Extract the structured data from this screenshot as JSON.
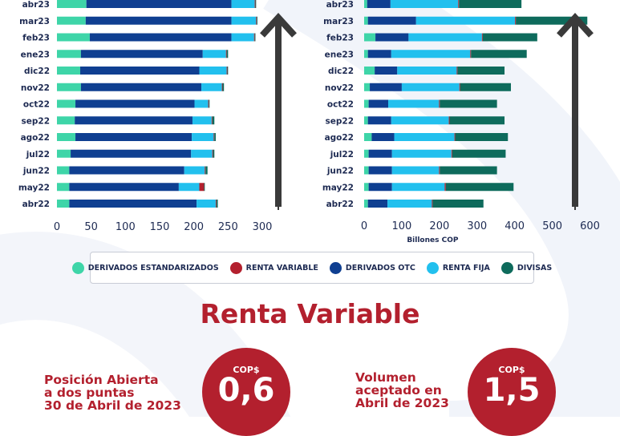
{
  "chart_data": [
    {
      "type": "bar",
      "stacked": true,
      "orientation": "horizontal",
      "categories": [
        "abr23",
        "mar23",
        "feb23",
        "ene23",
        "dic22",
        "nov22",
        "oct22",
        "sep22",
        "ago22",
        "jul22",
        "jun22",
        "may22",
        "abr22"
      ],
      "series": [
        {
          "name": "DERIVADOS ESTANDARIZADOS",
          "values": [
            43,
            42,
            48,
            35,
            34,
            35,
            27,
            26,
            27,
            20,
            18,
            18,
            18
          ]
        },
        {
          "name": "DERIVADOS OTC",
          "values": [
            212,
            213,
            207,
            178,
            174,
            176,
            174,
            172,
            170,
            176,
            168,
            160,
            186
          ]
        },
        {
          "name": "RENTA FIJA",
          "values": [
            34,
            36,
            33,
            34,
            40,
            30,
            20,
            28,
            32,
            31,
            30,
            30,
            28
          ]
        },
        {
          "name": "RENTA VARIABLE",
          "values": [
            1,
            1,
            1,
            1,
            1,
            1,
            1,
            1,
            1,
            1,
            1,
            7,
            1
          ]
        },
        {
          "name": "DIVISAS",
          "values": [
            1,
            1,
            1,
            2,
            1,
            2,
            1,
            3,
            2,
            2,
            3,
            1,
            2
          ]
        }
      ],
      "xlim": [
        0,
        300
      ],
      "xticks": [
        0,
        50,
        100,
        150,
        200,
        250,
        300
      ],
      "xlabel": ""
    },
    {
      "type": "bar",
      "stacked": true,
      "orientation": "horizontal",
      "categories": [
        "abr23",
        "mar23",
        "feb23",
        "ene23",
        "dic22",
        "nov22",
        "oct22",
        "sep22",
        "ago22",
        "jul22",
        "jun22",
        "may22",
        "abr22"
      ],
      "series": [
        {
          "name": "DERIVADOS ESTANDARIZADOS",
          "values": [
            8,
            10,
            30,
            10,
            28,
            15,
            12,
            10,
            20,
            12,
            12,
            12,
            10
          ]
        },
        {
          "name": "DERIVADOS OTC",
          "values": [
            62,
            128,
            88,
            62,
            60,
            85,
            52,
            62,
            60,
            62,
            62,
            62,
            52
          ]
        },
        {
          "name": "RENTA FIJA",
          "values": [
            180,
            263,
            195,
            210,
            158,
            153,
            135,
            153,
            160,
            158,
            125,
            140,
            118
          ]
        },
        {
          "name": "RENTA VARIABLE",
          "values": [
            2,
            2,
            2,
            2,
            2,
            2,
            2,
            2,
            2,
            2,
            2,
            3,
            2
          ]
        },
        {
          "name": "DIVISAS",
          "values": [
            166,
            190,
            145,
            148,
            125,
            135,
            152,
            146,
            140,
            142,
            152,
            180,
            135
          ]
        }
      ],
      "xlim": [
        0,
        650
      ],
      "xticks": [
        0,
        100,
        200,
        300,
        400,
        500,
        600
      ],
      "xlabel": "Billones COP"
    }
  ],
  "legend": [
    {
      "label": "DERIVADOS ESTANDARIZADOS",
      "color": "#3ed5a8"
    },
    {
      "label": "RENTA VARIABLE",
      "color": "#b3202e"
    },
    {
      "label": "DERIVADOS OTC",
      "color": "#0f3f91"
    },
    {
      "label": "RENTA FIJA",
      "color": "#22c0ee"
    },
    {
      "label": "DIVISAS",
      "color": "#0e6b5c"
    }
  ],
  "colors": {
    "DERIVADOS ESTANDARIZADOS": "#3ed5a8",
    "DERIVADOS OTC": "#0f3f91",
    "RENTA FIJA": "#22c0ee",
    "RENTA VARIABLE": "#b3202e",
    "DIVISAS": "#0e6b5c",
    "accent": "#b3202e",
    "arrow": "#3a3a3a"
  },
  "section_title": "Renta Variable",
  "info_left": {
    "lines": [
      "Posición Abierta",
      "a dos puntas",
      "30 de  Abril de 2023"
    ],
    "currency": "COP$",
    "value": "0,6"
  },
  "info_right": {
    "lines": [
      "Volumen",
      "aceptado en",
      "Abril de 2023"
    ],
    "currency": "COP$",
    "value": "1,5"
  },
  "icons": [
    "up-arrow-icon",
    "up-arrow-icon"
  ]
}
